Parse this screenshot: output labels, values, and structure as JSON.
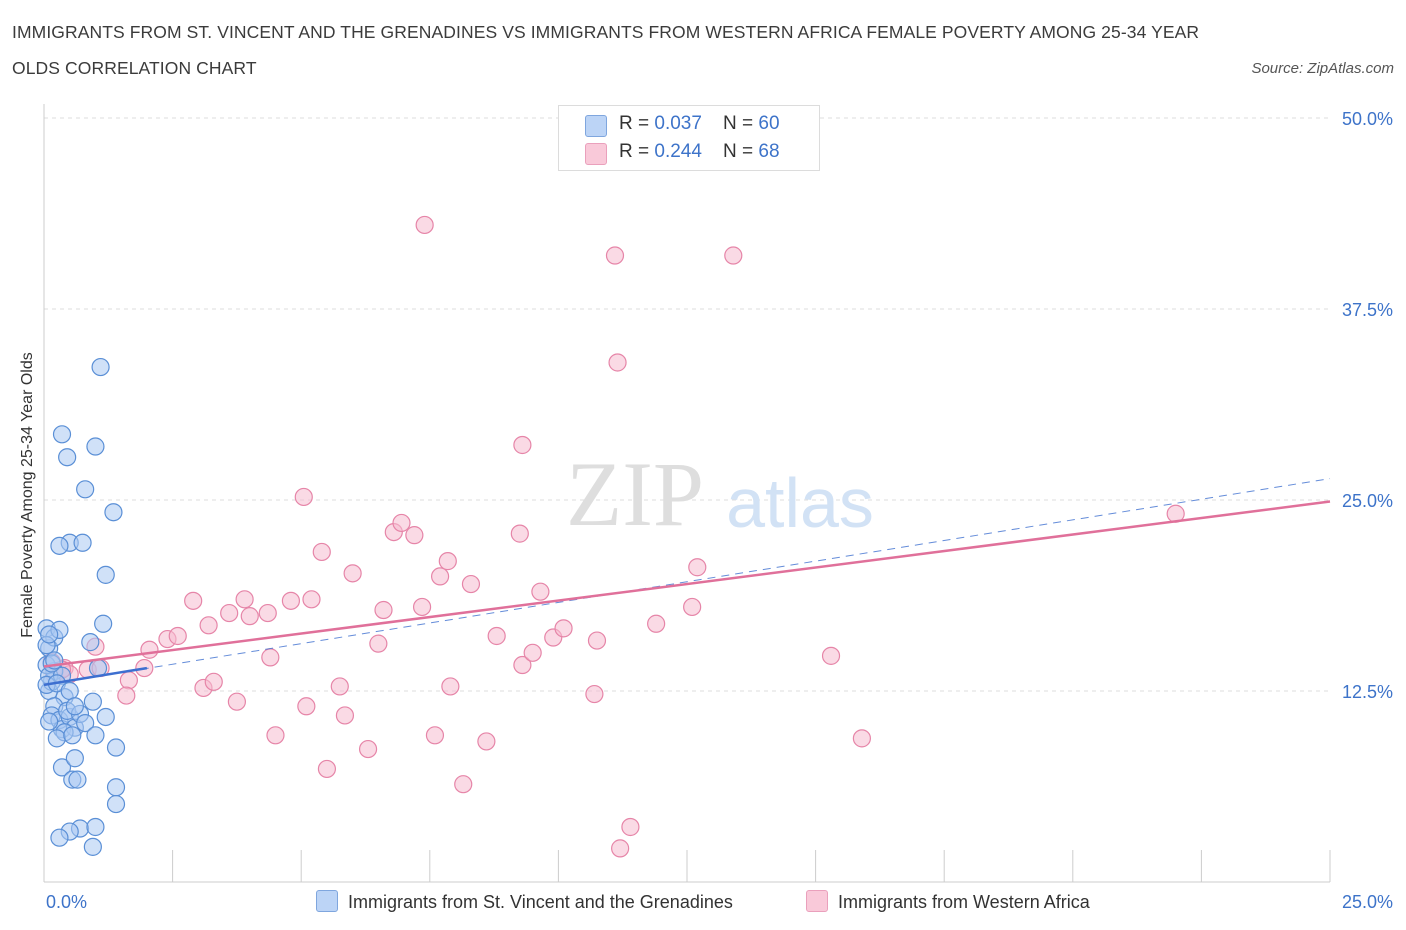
{
  "header": {
    "title": "IMMIGRANTS FROM ST. VINCENT AND THE GRENADINES VS IMMIGRANTS FROM WESTERN AFRICA FEMALE POVERTY AMONG 25-34 YEAR OLDS CORRELATION CHART",
    "source": "Source: ZipAtlas.com"
  },
  "legend": {
    "r_label": "R = ",
    "n_label": "N = ",
    "series": [
      {
        "r": "0.037",
        "n": "60"
      },
      {
        "r": "0.244",
        "n": "68"
      }
    ]
  },
  "bottom_legend": {
    "series_a": "Immigrants from St. Vincent and the Grenadines",
    "series_b": "Immigrants from Western Africa"
  },
  "watermark": {
    "zip": "ZIP",
    "atlas": "atlas"
  },
  "colors": {
    "blue_fill": "#aac8f2",
    "blue_stroke": "#5a8fd6",
    "blue_line": "#3d6fd0",
    "pink_fill": "#f6bcd0",
    "pink_stroke": "#e685a8",
    "pink_line": "#e0709a",
    "axis_label": "#3d73c9",
    "grid": "#dddddd"
  },
  "chart_data": {
    "type": "scatter",
    "title": "IMMIGRANTS FROM ST. VINCENT AND THE GRENADINES VS IMMIGRANTS FROM WESTERN AFRICA FEMALE POVERTY AMONG 25-34 YEAR OLDS CORRELATION CHART",
    "xlabel": "",
    "ylabel": "Female Poverty Among 25-34 Year Olds",
    "xlim": [
      0,
      25
    ],
    "ylim": [
      0,
      50
    ],
    "x_ticks": [
      "0.0%",
      "25.0%"
    ],
    "y_ticks": [
      {
        "value": 12.5,
        "label": "12.5%"
      },
      {
        "value": 25,
        "label": "25.0%"
      },
      {
        "value": 37.5,
        "label": "37.5%"
      },
      {
        "value": 50,
        "label": "50.0%"
      }
    ],
    "grid": true,
    "legend_position": "top-center",
    "series": [
      {
        "name": "Immigrants from St. Vincent and the Grenadines",
        "color": "#aac8f2",
        "r": 0.037,
        "n": 60,
        "trend": {
          "x0": 0.0,
          "y0": 12.9,
          "x1": 2.0,
          "y1": 14.0
        },
        "trend_dashed": {
          "x0": 0.0,
          "y0": 12.9,
          "x1": 25.0,
          "y1": 26.4
        },
        "points": [
          [
            0.05,
            16.6
          ],
          [
            0.1,
            15.3
          ],
          [
            0.1,
            12.5
          ],
          [
            0.15,
            13.1
          ],
          [
            0.2,
            13.8
          ],
          [
            0.05,
            14.2
          ],
          [
            0.1,
            13.5
          ],
          [
            0.2,
            16.0
          ],
          [
            0.3,
            16.5
          ],
          [
            0.35,
            13.5
          ],
          [
            0.4,
            12.1
          ],
          [
            0.2,
            11.5
          ],
          [
            0.15,
            10.9
          ],
          [
            0.3,
            10.6
          ],
          [
            0.35,
            10.0
          ],
          [
            0.5,
            10.8
          ],
          [
            0.6,
            10.1
          ],
          [
            0.4,
            9.8
          ],
          [
            0.25,
            9.4
          ],
          [
            0.55,
            9.6
          ],
          [
            0.45,
            11.2
          ],
          [
            0.7,
            11.0
          ],
          [
            0.8,
            10.4
          ],
          [
            0.95,
            11.8
          ],
          [
            1.0,
            9.6
          ],
          [
            0.9,
            15.7
          ],
          [
            1.05,
            14.0
          ],
          [
            1.15,
            16.9
          ],
          [
            1.2,
            10.8
          ],
          [
            1.4,
            8.8
          ],
          [
            0.35,
            7.5
          ],
          [
            0.6,
            8.1
          ],
          [
            0.55,
            6.7
          ],
          [
            0.65,
            6.7
          ],
          [
            1.4,
            6.2
          ],
          [
            1.4,
            5.1
          ],
          [
            0.7,
            3.5
          ],
          [
            1.0,
            3.6
          ],
          [
            0.5,
            3.3
          ],
          [
            0.3,
            2.9
          ],
          [
            0.95,
            2.3
          ],
          [
            0.35,
            29.3
          ],
          [
            0.45,
            27.8
          ],
          [
            0.5,
            22.2
          ],
          [
            0.75,
            22.2
          ],
          [
            0.3,
            22.0
          ],
          [
            1.0,
            28.5
          ],
          [
            1.1,
            33.7
          ],
          [
            0.8,
            25.7
          ],
          [
            1.35,
            24.2
          ],
          [
            1.2,
            20.1
          ],
          [
            0.05,
            12.9
          ],
          [
            0.15,
            14.3
          ],
          [
            0.25,
            13.0
          ],
          [
            0.05,
            15.5
          ],
          [
            0.1,
            10.5
          ],
          [
            0.5,
            12.5
          ],
          [
            0.6,
            11.5
          ],
          [
            0.2,
            14.5
          ],
          [
            0.1,
            16.2
          ]
        ]
      },
      {
        "name": "Immigrants from Western Africa",
        "color": "#f6bcd0",
        "r": 0.244,
        "n": 68,
        "trend": {
          "x0": 0.0,
          "y0": 14.1,
          "x1": 25.0,
          "y1": 24.9
        },
        "points": [
          [
            0.15,
            14.4
          ],
          [
            0.2,
            13.6
          ],
          [
            0.4,
            14.0
          ],
          [
            0.5,
            13.6
          ],
          [
            0.85,
            13.9
          ],
          [
            1.0,
            15.4
          ],
          [
            1.1,
            14.0
          ],
          [
            1.65,
            13.2
          ],
          [
            1.6,
            12.2
          ],
          [
            1.95,
            14.0
          ],
          [
            2.05,
            15.2
          ],
          [
            2.4,
            15.9
          ],
          [
            2.6,
            16.1
          ],
          [
            2.9,
            18.4
          ],
          [
            3.2,
            16.8
          ],
          [
            3.1,
            12.7
          ],
          [
            3.6,
            17.6
          ],
          [
            3.9,
            18.5
          ],
          [
            4.0,
            17.4
          ],
          [
            4.4,
            14.7
          ],
          [
            3.75,
            11.8
          ],
          [
            3.3,
            13.1
          ],
          [
            4.35,
            17.6
          ],
          [
            4.5,
            9.6
          ],
          [
            4.8,
            18.4
          ],
          [
            5.05,
            25.2
          ],
          [
            5.2,
            18.5
          ],
          [
            5.4,
            21.6
          ],
          [
            5.1,
            11.5
          ],
          [
            5.5,
            7.4
          ],
          [
            5.75,
            12.8
          ],
          [
            5.85,
            10.9
          ],
          [
            6.0,
            20.2
          ],
          [
            6.3,
            8.7
          ],
          [
            6.5,
            15.6
          ],
          [
            6.6,
            17.8
          ],
          [
            6.8,
            22.9
          ],
          [
            6.95,
            23.5
          ],
          [
            7.2,
            22.7
          ],
          [
            7.35,
            18.0
          ],
          [
            7.6,
            9.6
          ],
          [
            7.7,
            20.0
          ],
          [
            7.85,
            21.0
          ],
          [
            7.9,
            12.8
          ],
          [
            8.15,
            6.4
          ],
          [
            8.3,
            19.5
          ],
          [
            8.6,
            9.2
          ],
          [
            8.8,
            16.1
          ],
          [
            9.25,
            22.8
          ],
          [
            9.3,
            14.2
          ],
          [
            9.5,
            15.0
          ],
          [
            9.65,
            19.0
          ],
          [
            9.9,
            16.0
          ],
          [
            10.1,
            16.6
          ],
          [
            10.7,
            12.3
          ],
          [
            10.75,
            15.8
          ],
          [
            11.1,
            41.0
          ],
          [
            11.15,
            34.0
          ],
          [
            11.2,
            2.2
          ],
          [
            11.4,
            3.6
          ],
          [
            11.9,
            16.9
          ],
          [
            12.6,
            18.0
          ],
          [
            12.7,
            20.6
          ],
          [
            13.4,
            41.0
          ],
          [
            7.4,
            43.0
          ],
          [
            9.3,
            28.6
          ],
          [
            15.3,
            14.8
          ],
          [
            15.9,
            9.4
          ]
        ]
      }
    ],
    "extra_points_pink": [
      [
        22.0,
        24.1
      ],
      [
        0.35,
        13.9
      ]
    ]
  }
}
